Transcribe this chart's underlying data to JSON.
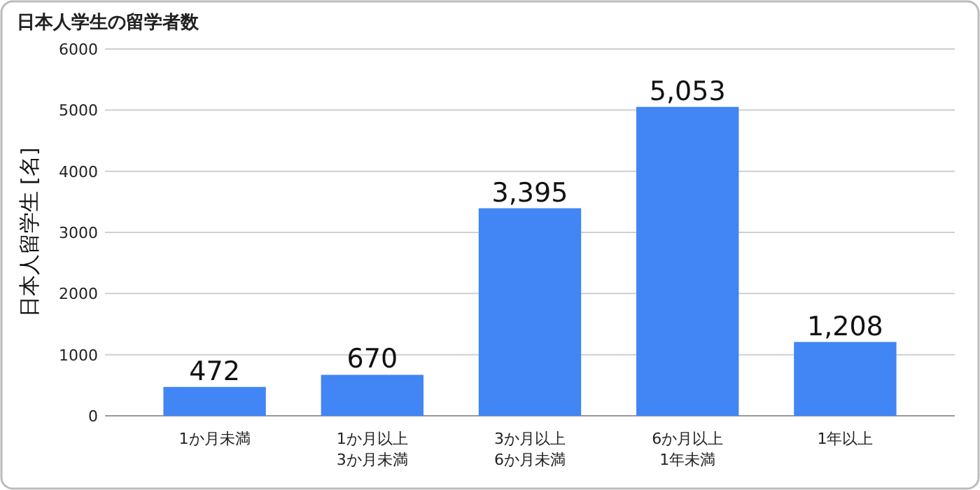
{
  "chart_data": {
    "type": "bar",
    "title": "日本人学生の留学者数",
    "ylabel": "日本人留学生 [名]",
    "categories": [
      "1か月未満",
      "1か月以上 3か月未満",
      "3か月以上 6か月未満",
      "6か月以上 1年未満",
      "1年以上"
    ],
    "values": [
      472,
      670,
      3395,
      5053,
      1208
    ],
    "color": "#4285f4",
    "value_labels": [
      "472",
      "670",
      "3,395",
      "5,053",
      "1,208"
    ],
    "ylim": [
      0,
      6000
    ],
    "yticks": [
      0,
      1000,
      2000,
      3000,
      4000,
      5000,
      6000
    ],
    "grid": "y"
  }
}
